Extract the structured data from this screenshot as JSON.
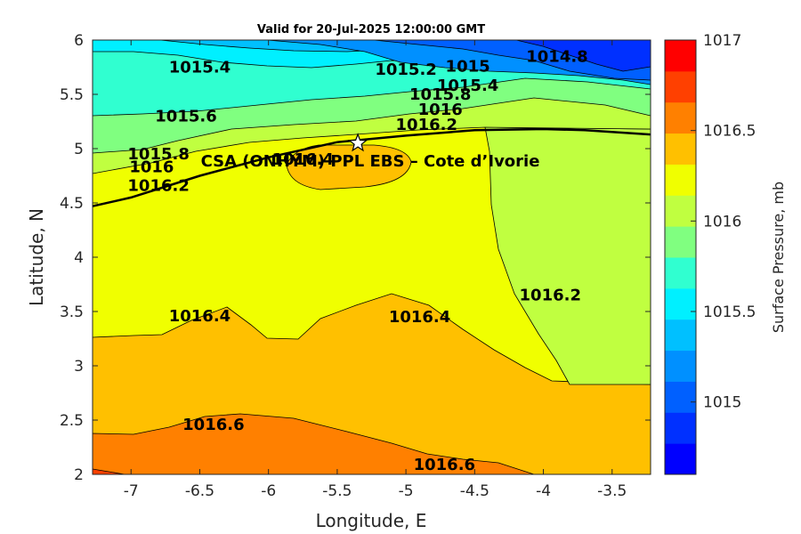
{
  "chart_data": {
    "type": "heatmap",
    "subtype": "filled-contour-map",
    "title": "Valid for 20-Jul-2025 12:00:00 GMT",
    "xlabel": "Longitude, E",
    "ylabel": "Latitude, N",
    "xlim": [
      -7.28,
      -3.22
    ],
    "ylim": [
      2,
      6
    ],
    "x_ticks": [
      -7,
      -6.5,
      -6,
      -5.5,
      -5,
      -4.5,
      -4,
      -3.5
    ],
    "x_tick_labels": [
      "-7",
      "-6.5",
      "-6",
      "-5.5",
      "-5",
      "-4.5",
      "-4",
      "-3.5"
    ],
    "y_ticks": [
      2,
      2.5,
      3,
      3.5,
      4,
      4.5,
      5,
      5.5,
      6
    ],
    "y_tick_labels": [
      "2",
      "2.5",
      "3",
      "3.5",
      "4",
      "4.5",
      "5",
      "5.5",
      "6"
    ],
    "colorbar": {
      "label": "Surface Pressure, mb",
      "range": [
        1014.6,
        1017.0
      ],
      "step": 0.2,
      "ticks": [
        1015,
        1015.5,
        1016,
        1016.5,
        1017
      ],
      "tick_labels": [
        "1015",
        "1015.5",
        "1016",
        "1016.5",
        "1017"
      ],
      "colors": [
        "#0000ff",
        "#0030ff",
        "#0060ff",
        "#0090ff",
        "#00c0ff",
        "#00f0ff",
        "#30ffd0",
        "#80ff80",
        "#c0ff40",
        "#f0ff00",
        "#ffc000",
        "#ff8000",
        "#ff4000",
        "#ff0000"
      ]
    },
    "contour_labels": [
      {
        "text": "1015.4",
        "lon": -6.5,
        "lat": 5.75
      },
      {
        "text": "1014.8",
        "lon": -3.9,
        "lat": 5.85
      },
      {
        "text": "1015.2",
        "lon": -5.0,
        "lat": 5.73
      },
      {
        "text": "1015",
        "lon": -4.55,
        "lat": 5.76
      },
      {
        "text": "1015.4",
        "lon": -4.55,
        "lat": 5.58
      },
      {
        "text": "1015.6",
        "lon": -6.6,
        "lat": 5.3
      },
      {
        "text": "1015.8",
        "lon": -4.75,
        "lat": 5.5
      },
      {
        "text": "1016",
        "lon": -4.75,
        "lat": 5.36
      },
      {
        "text": "1016.2",
        "lon": -4.85,
        "lat": 5.22
      },
      {
        "text": "1015.8",
        "lon": -6.8,
        "lat": 4.95
      },
      {
        "text": "1016",
        "lon": -6.85,
        "lat": 4.83
      },
      {
        "text": "1016.2",
        "lon": -6.8,
        "lat": 4.66
      },
      {
        "text": "1016.4",
        "lon": -5.75,
        "lat": 4.9
      },
      {
        "text": "1016.2",
        "lon": -3.95,
        "lat": 3.65
      },
      {
        "text": "1016.4",
        "lon": -6.5,
        "lat": 3.46
      },
      {
        "text": "1016.4",
        "lon": -4.9,
        "lat": 3.45
      },
      {
        "text": "1016.6",
        "lon": -6.4,
        "lat": 2.46
      },
      {
        "text": "1016.6",
        "lon": -4.72,
        "lat": 2.09
      }
    ],
    "site": {
      "name": "CSA (ONHYM) PPL EBS – Cote d’Ivorie",
      "lon": -5.35,
      "lat": 5.05,
      "marker": "star"
    },
    "coastline": [
      [
        -7.28,
        4.47
      ],
      [
        -7.0,
        4.55
      ],
      [
        -6.5,
        4.75
      ],
      [
        -6.0,
        4.92
      ],
      [
        -5.5,
        5.06
      ],
      [
        -5.0,
        5.12
      ],
      [
        -4.5,
        5.17
      ],
      [
        -4.0,
        5.18
      ],
      [
        -3.7,
        5.17
      ],
      [
        -3.22,
        5.13
      ]
    ]
  }
}
